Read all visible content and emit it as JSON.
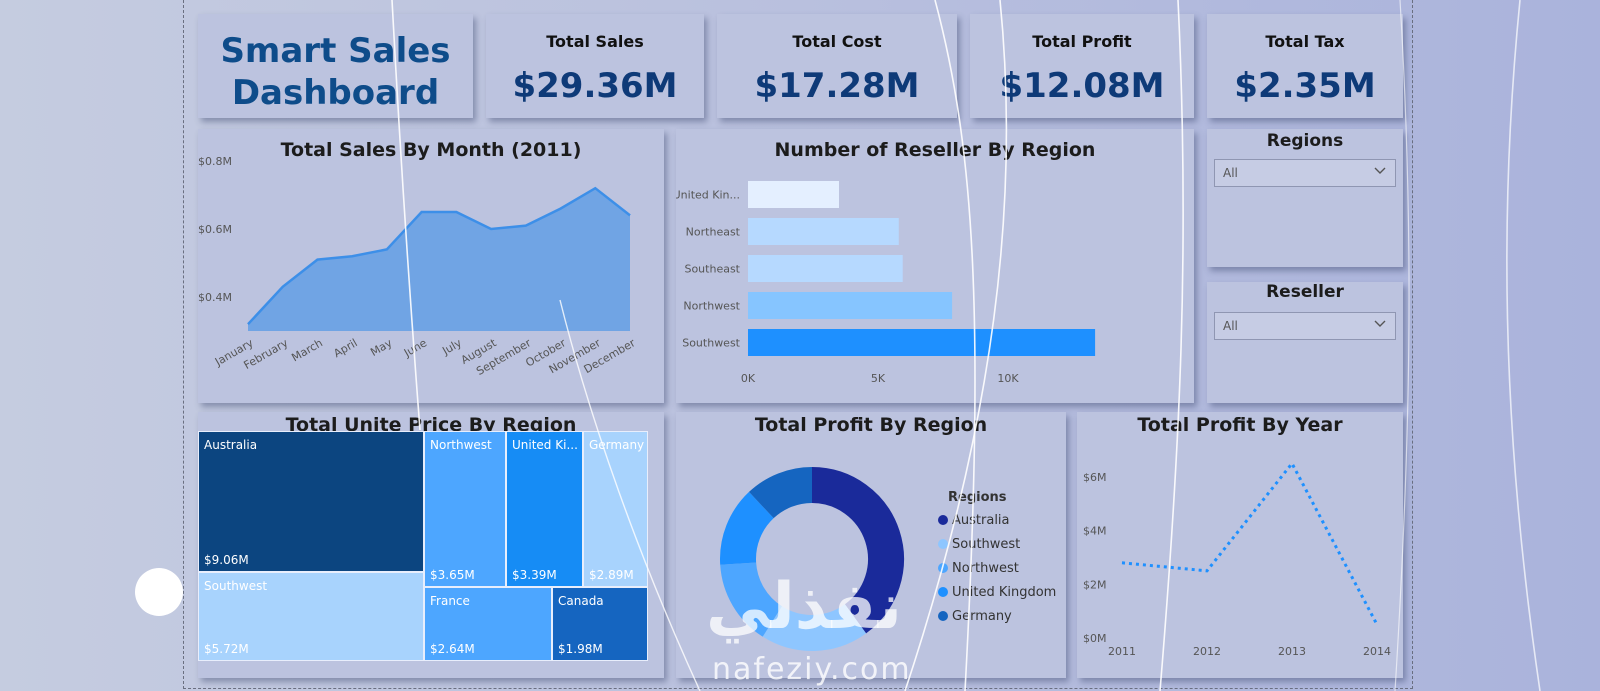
{
  "brand": {
    "line1": "Smart Sales",
    "line2": "Dashboard"
  },
  "kpis": [
    {
      "title": "Total Sales",
      "value": "$29.36M"
    },
    {
      "title": "Total Cost",
      "value": "$17.28M"
    },
    {
      "title": "Total Profit",
      "value": "$12.08M"
    },
    {
      "title": "Total Tax",
      "value": "$2.35M"
    }
  ],
  "sales_by_month": {
    "title": "Total Sales By Month (2011)"
  },
  "reseller_by_region": {
    "title": "Number of Reseller By Region"
  },
  "unit_price_by_region": {
    "title": "Total Unite Price By Region"
  },
  "profit_by_region": {
    "title": "Total Profit By Region",
    "legend_title": "Regions"
  },
  "profit_by_year": {
    "title": "Total Profit By Year"
  },
  "slicers": {
    "regions": {
      "title": "Regions",
      "value": "All"
    },
    "reseller": {
      "title": "Reseller",
      "value": "All"
    }
  },
  "watermark": {
    "arabic": "نفذلي",
    "latin": "nafeziy.com"
  },
  "colors": {
    "accent": "#1e90ff",
    "dark_blue": "#0e3a78",
    "panel": "#bcc3df"
  },
  "chart_data": [
    {
      "type": "area",
      "title": "Total Sales By Month (2011)",
      "categories": [
        "January",
        "February",
        "March",
        "April",
        "May",
        "June",
        "July",
        "August",
        "September",
        "October",
        "November",
        "December"
      ],
      "values": [
        0.32,
        0.43,
        0.51,
        0.52,
        0.54,
        0.65,
        0.65,
        0.6,
        0.61,
        0.66,
        0.72,
        0.64
      ],
      "y_ticks": [
        "$0.4M",
        "$0.6M",
        "$0.8M"
      ],
      "ylim": [
        0.3,
        0.8
      ],
      "unit": "$M",
      "color": "#3d8fe8"
    },
    {
      "type": "bar",
      "orientation": "horizontal",
      "title": "Number of Reseller By Region",
      "categories": [
        "United Kin...",
        "Northeast",
        "Southeast",
        "Northwest",
        "Southwest"
      ],
      "values": [
        3500,
        5800,
        5950,
        7850,
        13350
      ],
      "bar_colors": [
        "#e4efff",
        "#b6d9ff",
        "#b6d9ff",
        "#86c5ff",
        "#1e90ff"
      ],
      "x_ticks": [
        "0K",
        "5K",
        "10K"
      ],
      "xlim": [
        0,
        15000
      ]
    },
    {
      "type": "treemap",
      "title": "Total Unite Price By Region",
      "cells": [
        {
          "label": "Australia",
          "value": "$9.06M",
          "color": "#0c4580"
        },
        {
          "label": "Southwest",
          "value": "$5.72M",
          "color": "#a8d3fd"
        },
        {
          "label": "Northwest",
          "value": "$3.65M",
          "color": "#4da6ff"
        },
        {
          "label": "United Ki...",
          "value": "$3.39M",
          "color": "#168cf5"
        },
        {
          "label": "Germany",
          "value": "$2.89M",
          "color": "#a8d3fd"
        },
        {
          "label": "France",
          "value": "$2.64M",
          "color": "#4da6ff"
        },
        {
          "label": "Canada",
          "value": "$1.98M",
          "color": "#1565c0"
        }
      ]
    },
    {
      "type": "pie",
      "donut": true,
      "title": "Total Profit By Region",
      "legend_title": "Regions",
      "legend": [
        {
          "label": "Australia",
          "color": "#1a2a9a"
        },
        {
          "label": "Southwest",
          "color": "#8ec6ff"
        },
        {
          "label": "Northwest",
          "color": "#4da6ff"
        },
        {
          "label": "United Kingdom",
          "color": "#1e90ff"
        },
        {
          "label": "Germany",
          "color": "#1565c0"
        }
      ],
      "slices": [
        {
          "color": "#1a2a9a",
          "value": 40
        },
        {
          "color": "#8ec6ff",
          "value": 19
        },
        {
          "color": "#4da6ff",
          "value": 15
        },
        {
          "color": "#1e90ff",
          "value": 14
        },
        {
          "color": "#1565c0",
          "value": 12
        }
      ]
    },
    {
      "type": "line",
      "title": "Total Profit By Year",
      "categories": [
        "2011",
        "2012",
        "2013",
        "2014"
      ],
      "values": [
        2.8,
        2.5,
        6.5,
        0.5
      ],
      "y_ticks": [
        "$0M",
        "$2M",
        "$4M",
        "$6M"
      ],
      "ylim": [
        0,
        7
      ],
      "unit": "$M",
      "line_style": "dotted",
      "color": "#1e90ff"
    }
  ]
}
